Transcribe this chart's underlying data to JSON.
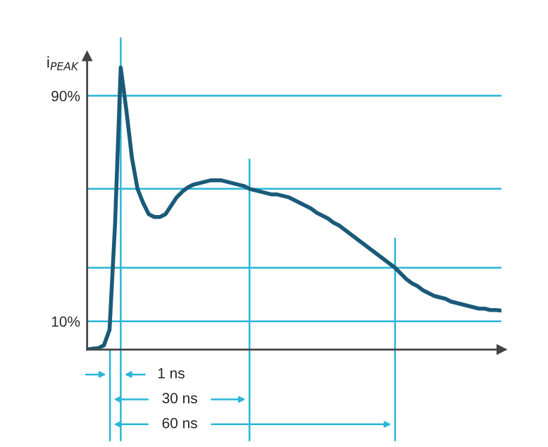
{
  "chart_data": {
    "type": "line",
    "ylabel": "i$_{PEAK}$",
    "tick_labels": "y",
    "grid": false,
    "marker": "none",
    "line_style": "solid",
    "categories": [
      null,
      null,
      null,
      null,
      null,
      null,
      null,
      null,
      null,
      null,
      null,
      null,
      null,
      null,
      null,
      null,
      null,
      null,
      null,
      null,
      null,
      null,
      null,
      null,
      null,
      null,
      null,
      null,
      null,
      null,
      null,
      null,
      null,
      null,
      null,
      null,
      null,
      null,
      null,
      null,
      null,
      null,
      null,
      null,
      null,
      null,
      null,
      null,
      null,
      null,
      null,
      null,
      null,
      null,
      null,
      null,
      null,
      null,
      null,
      null,
      null,
      null,
      null,
      null,
      null,
      null,
      null,
      null,
      null,
      null,
      null,
      null,
      null,
      null,
      null
    ],
    "series": [
      {
        "color": "#1a5a78",
        "values": [
          0,
          0.3,
          0.5,
          1.5,
          7,
          45,
          100,
          85,
          68,
          57,
          52,
          48,
          47,
          47,
          48,
          51,
          54,
          56,
          57.5,
          58.5,
          59,
          59.5,
          60,
          60,
          60,
          59.5,
          59,
          58.5,
          58,
          57,
          56.5,
          56,
          55.5,
          55,
          55,
          54.5,
          54,
          53,
          52,
          51,
          50,
          48.5,
          47.5,
          46.5,
          45,
          44,
          42.5,
          41,
          39.5,
          38,
          36.5,
          35,
          33.5,
          32,
          30.5,
          29,
          27,
          25,
          23.5,
          22.5,
          21,
          20,
          19,
          18.5,
          18,
          17,
          16.5,
          16,
          15.5,
          15,
          14.5,
          14.5,
          14,
          14,
          13.8
        ]
      }
    ],
    "ylim": [
      0,
      104
    ],
    "yticks": [
      {
        "value": 10,
        "label": "10%"
      },
      {
        "value": 90,
        "label": "90%"
      }
    ],
    "ref_lines": [
      {
        "axis": "y",
        "value": 90,
        "label": null,
        "color": "#29b6d8"
      },
      {
        "axis": "y",
        "value": 57,
        "label": null,
        "color": "#29b6d8"
      },
      {
        "axis": "y",
        "value": 29,
        "label": null,
        "color": "#29b6d8"
      },
      {
        "axis": "y",
        "value": 10,
        "label": null,
        "color": "#29b6d8"
      }
    ],
    "annotations": [
      "1 ns",
      "30 ns",
      "60 ns"
    ]
  }
}
